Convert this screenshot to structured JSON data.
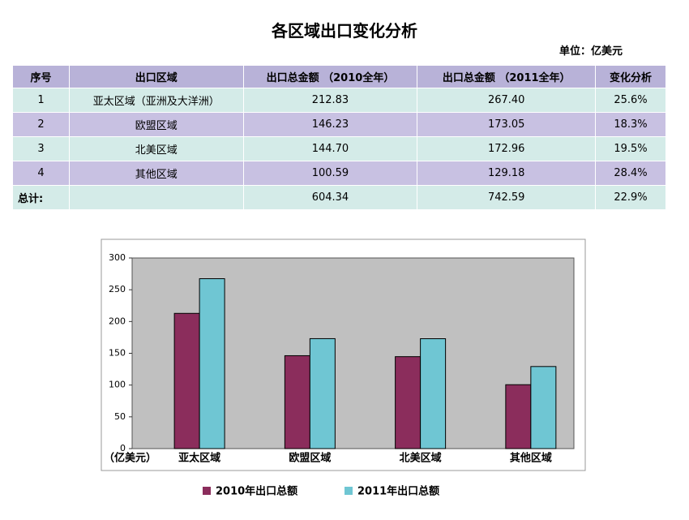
{
  "title": "各区域出口变化分析",
  "unit": "单位：亿美元",
  "table": {
    "header": [
      "序号",
      "出口区域",
      "出口总金额 （2010全年）",
      "出口总金额 （2011全年）",
      "变化分析"
    ],
    "rows": [
      [
        "1",
        "亚太区域（亚洲及大洋洲）",
        "212.83",
        "267.40",
        "25.6%"
      ],
      [
        "2",
        "欧盟区域",
        "146.23",
        "173.05",
        "18.3%"
      ],
      [
        "3",
        "北美区域",
        "144.70",
        "172.96",
        "19.5%"
      ],
      [
        "4",
        "其他区域",
        "100.59",
        "129.18",
        "28.4%"
      ],
      [
        "总计:",
        "",
        "604.34",
        "742.59",
        "22.9%"
      ]
    ]
  },
  "chart_data": {
    "type": "bar",
    "y_unit_label": "（亿美元）",
    "categories": [
      "亚太区域",
      "欧盟区域",
      "北美区域",
      "其他区域"
    ],
    "series": [
      {
        "name": "2010年出口总额",
        "color": "#8b2d5c",
        "values": [
          212.83,
          146.23,
          144.7,
          100.59
        ]
      },
      {
        "name": "2011年出口总额",
        "color": "#6fc6d3",
        "values": [
          267.4,
          173.05,
          172.96,
          129.18
        ]
      }
    ],
    "ylim": [
      0,
      300
    ],
    "yticks": [
      0,
      50,
      100,
      150,
      200,
      250,
      300
    ],
    "grid": false
  }
}
